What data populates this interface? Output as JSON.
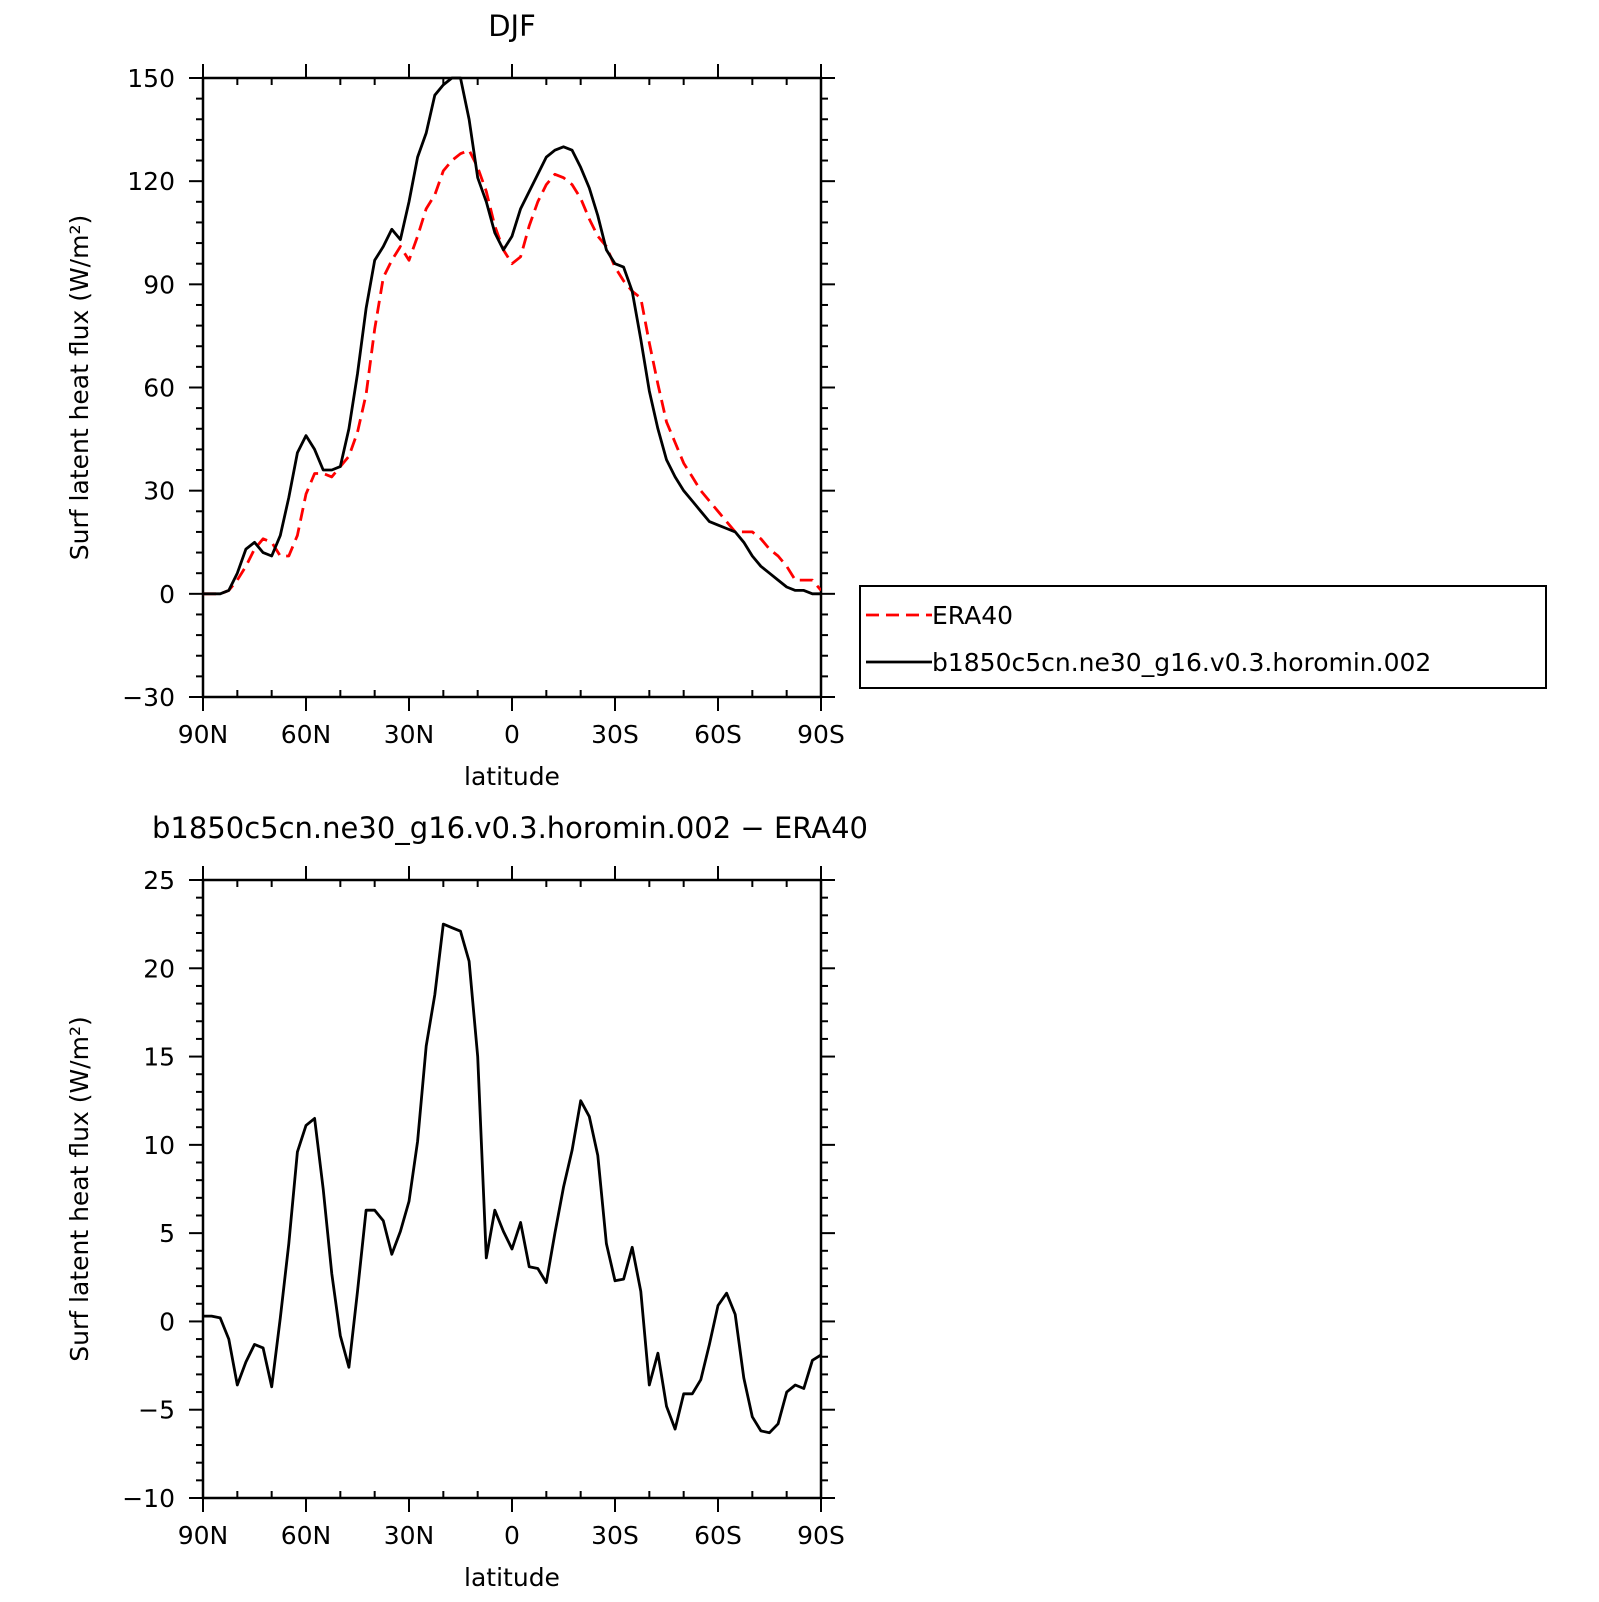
{
  "chart_data": [
    {
      "type": "line",
      "title": "DJF",
      "xlabel": "latitude",
      "ylabel": "Surf latent heat flux (W/m²)",
      "xlim": [
        90,
        -90
      ],
      "ylim": [
        -30,
        150
      ],
      "x_ticks": [
        90,
        60,
        30,
        0,
        -30,
        -60,
        -90
      ],
      "x_tick_labels": [
        "90N",
        "60N",
        "30N",
        "0",
        "30S",
        "60S",
        "90S"
      ],
      "y_ticks": [
        -30,
        0,
        30,
        60,
        90,
        120,
        150
      ],
      "y_tick_labels": [
        "−30",
        "0",
        "30",
        "60",
        "90",
        "120",
        "150"
      ],
      "legend_position": "right",
      "series": [
        {
          "name": "ERA40",
          "color": "#ff0000",
          "style": "dashed",
          "x": [
            90,
            87.5,
            85,
            82.5,
            80,
            77.5,
            75,
            72.5,
            70,
            67.5,
            65,
            62.5,
            60,
            57.5,
            55,
            52.5,
            50,
            47.5,
            45,
            42.5,
            40,
            37.5,
            35,
            32.5,
            30,
            27.5,
            25,
            22.5,
            20,
            17.5,
            15,
            12.5,
            10,
            7.5,
            5,
            2.5,
            0,
            -2.5,
            -5,
            -7.5,
            -10,
            -12.5,
            -15,
            -17.5,
            -20,
            -22.5,
            -25,
            -27.5,
            -30,
            -32.5,
            -35,
            -37.5,
            -40,
            -42.5,
            -45,
            -47.5,
            -50,
            -52.5,
            -55,
            -57.5,
            -60,
            -62.5,
            -65,
            -67.5,
            -70,
            -72.5,
            -75,
            -77.5,
            -80,
            -82.5,
            -85,
            -87.5,
            -90
          ],
          "y": [
            0,
            0,
            0,
            1,
            4,
            8,
            13,
            16,
            15,
            11,
            11,
            17,
            29,
            35,
            35,
            34,
            37,
            40,
            47,
            58,
            77,
            92,
            97,
            101,
            97,
            104,
            112,
            116,
            123,
            126,
            128,
            129,
            124,
            117,
            107,
            100,
            96,
            98,
            107,
            114,
            119,
            122,
            121,
            119,
            115,
            109,
            104,
            101,
            95,
            91,
            88,
            86,
            73,
            61,
            50,
            44,
            38,
            34,
            30,
            27,
            24,
            21,
            18,
            18,
            18,
            16,
            13,
            11,
            8,
            4,
            4,
            4,
            1
          ],
          "x_range": [
            90,
            -90
          ]
        },
        {
          "name": "b1850c5cn.ne30_g16.v0.3.horomin.002",
          "color": "#000000",
          "style": "solid",
          "x": [
            90,
            87.5,
            85,
            82.5,
            80,
            77.5,
            75,
            72.5,
            70,
            67.5,
            65,
            62.5,
            60,
            57.5,
            55,
            52.5,
            50,
            47.5,
            45,
            42.5,
            40,
            37.5,
            35,
            32.5,
            30,
            27.5,
            25,
            22.5,
            20,
            17.5,
            15,
            12.5,
            10,
            7.5,
            5,
            2.5,
            0,
            -2.5,
            -5,
            -7.5,
            -10,
            -12.5,
            -15,
            -17.5,
            -20,
            -22.5,
            -25,
            -27.5,
            -30,
            -32.5,
            -35,
            -37.5,
            -40,
            -42.5,
            -45,
            -47.5,
            -50,
            -52.5,
            -55,
            -57.5,
            -60,
            -62.5,
            -65,
            -67.5,
            -70,
            -72.5,
            -75,
            -77.5,
            -80,
            -82.5,
            -85,
            -87.5,
            -90
          ],
          "y": [
            0,
            0,
            0,
            1,
            6,
            13,
            15,
            12,
            11,
            17,
            28,
            41,
            46,
            42,
            36,
            36,
            37,
            48,
            64,
            83,
            97,
            101,
            106,
            103,
            114,
            127,
            134,
            145,
            148,
            150,
            150,
            138,
            121,
            114,
            105,
            100,
            104,
            112,
            117,
            122,
            127,
            129,
            130,
            129,
            124,
            118,
            110,
            100,
            96,
            95,
            88,
            74,
            59,
            48,
            39,
            34,
            30,
            27,
            24,
            21,
            20,
            19,
            18,
            15,
            11,
            8,
            6,
            4,
            2,
            1,
            1,
            0,
            0
          ]
        }
      ]
    },
    {
      "type": "line",
      "title": "b1850c5cn.ne30_g16.v0.3.horomin.002 − ERA40",
      "xlabel": "latitude",
      "ylabel": "Surf latent heat flux (W/m²)",
      "xlim": [
        90,
        -90
      ],
      "ylim": [
        -10,
        25
      ],
      "x_ticks": [
        90,
        60,
        30,
        0,
        -30,
        -60,
        -90
      ],
      "x_tick_labels": [
        "90N",
        "60N",
        "30N",
        "0",
        "30S",
        "60S",
        "90S"
      ],
      "y_ticks": [
        -10,
        -5,
        0,
        5,
        10,
        15,
        20,
        25
      ],
      "y_tick_labels": [
        "−10",
        "−5",
        "0",
        "5",
        "10",
        "15",
        "20",
        "25"
      ],
      "series": [
        {
          "color": "#000000",
          "style": "solid",
          "x": [
            90,
            87.5,
            85,
            82.5,
            80,
            77.5,
            75,
            72.5,
            70,
            67.5,
            65,
            62.5,
            60,
            57.5,
            55,
            52.5,
            50,
            47.5,
            45,
            42.5,
            40,
            37.5,
            35,
            32.5,
            30,
            27.5,
            25,
            22.5,
            20,
            17.5,
            15,
            12.5,
            10,
            7.5,
            5,
            2.5,
            0,
            -2.5,
            -5,
            -7.5,
            -10,
            -12.5,
            -15,
            -17.5,
            -20,
            -22.5,
            -25,
            -27.5,
            -30,
            -32.5,
            -35,
            -37.5,
            -40,
            -42.5,
            -45,
            -47.5,
            -50,
            -52.5,
            -55,
            -57.5,
            -60,
            -62.5,
            -65,
            -67.5,
            -70,
            -72.5,
            -75,
            -77.5,
            -80,
            -82.5,
            -85,
            -87.5,
            -90
          ],
          "y": [
            0.3,
            0.3,
            0.2,
            -1.0,
            -3.6,
            -2.3,
            -1.3,
            -1.5,
            -3.7,
            0.2,
            4.4,
            9.6,
            11.1,
            11.5,
            7.5,
            2.7,
            -0.8,
            -2.6,
            1.7,
            6.3,
            6.3,
            5.7,
            3.8,
            5.1,
            6.8,
            10.2,
            15.6,
            18.5,
            22.5,
            22.3,
            22.1,
            20.4,
            15.0,
            3.6,
            6.3,
            5.1,
            4.1,
            5.6,
            3.1,
            3.0,
            2.2,
            5.0,
            7.6,
            9.7,
            12.5,
            11.6,
            9.4,
            4.4,
            2.3,
            2.4,
            4.2,
            1.7,
            -3.6,
            -1.8,
            -4.8,
            -6.1,
            -4.1,
            -4.1,
            -3.3,
            -1.3,
            0.9,
            1.6,
            0.4,
            -3.2,
            -5.4,
            -6.2,
            -6.3,
            -5.8,
            -4.0,
            -3.6,
            -3.8,
            -2.2,
            -1.9
          ]
        }
      ]
    }
  ]
}
